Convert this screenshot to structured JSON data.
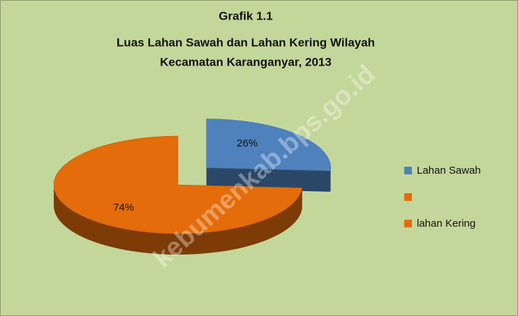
{
  "chart_data": {
    "type": "pie3d",
    "title": [
      "Grafik 1.1",
      "Luas Lahan Sawah dan Lahan Kering Wilayah",
      "Kecamatan Karanganyar, 2013"
    ],
    "categories": [
      "Lahan Sawah",
      null,
      "lahan Kering"
    ],
    "values": [
      26,
      null,
      74
    ],
    "value_labels": [
      "26%",
      null,
      "74%"
    ],
    "colors": [
      "#4f81bd",
      "#e46c0a",
      "#e46c0a"
    ],
    "legend": "right",
    "watermark": "kebumenkab.bps.go.id"
  }
}
